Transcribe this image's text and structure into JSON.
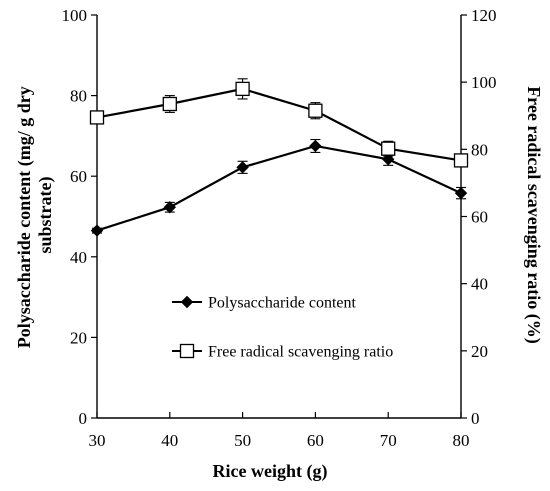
{
  "chart_data": {
    "type": "line",
    "x": [
      30,
      40,
      50,
      60,
      70,
      80
    ],
    "xlabel": "Rice weight (g)",
    "ylabel_left": "Polysaccharide content (mg/ g dry substrate)",
    "ylabel_right": "Free radical scavenging ratio (%)",
    "xlim": [
      30,
      80
    ],
    "ylim_left": [
      0,
      100
    ],
    "ylim_right": [
      0,
      120
    ],
    "x_ticks": [
      "30",
      "40",
      "50",
      "60",
      "70",
      "80"
    ],
    "y_left_ticks": [
      "0",
      "20",
      "40",
      "60",
      "80",
      "100"
    ],
    "y_right_ticks": [
      "0",
      "20",
      "40",
      "60",
      "80",
      "100",
      "120"
    ],
    "grid": false,
    "legend_position": "center",
    "series": [
      {
        "name": "Polysaccharide content",
        "axis": "left",
        "marker": "diamond",
        "values": [
          46.5,
          52.3,
          62.2,
          67.5,
          64.2,
          55.8
        ],
        "errors": [
          0.6,
          1.2,
          1.5,
          1.6,
          1.5,
          1.4
        ]
      },
      {
        "name": "Free radical scavenging ratio",
        "axis": "right",
        "marker": "square-open",
        "values": [
          89.5,
          93.5,
          98.0,
          91.5,
          80.2,
          76.7
        ],
        "errors": [
          1.2,
          2.5,
          3.0,
          2.4,
          2.2,
          1.0
        ]
      }
    ]
  }
}
